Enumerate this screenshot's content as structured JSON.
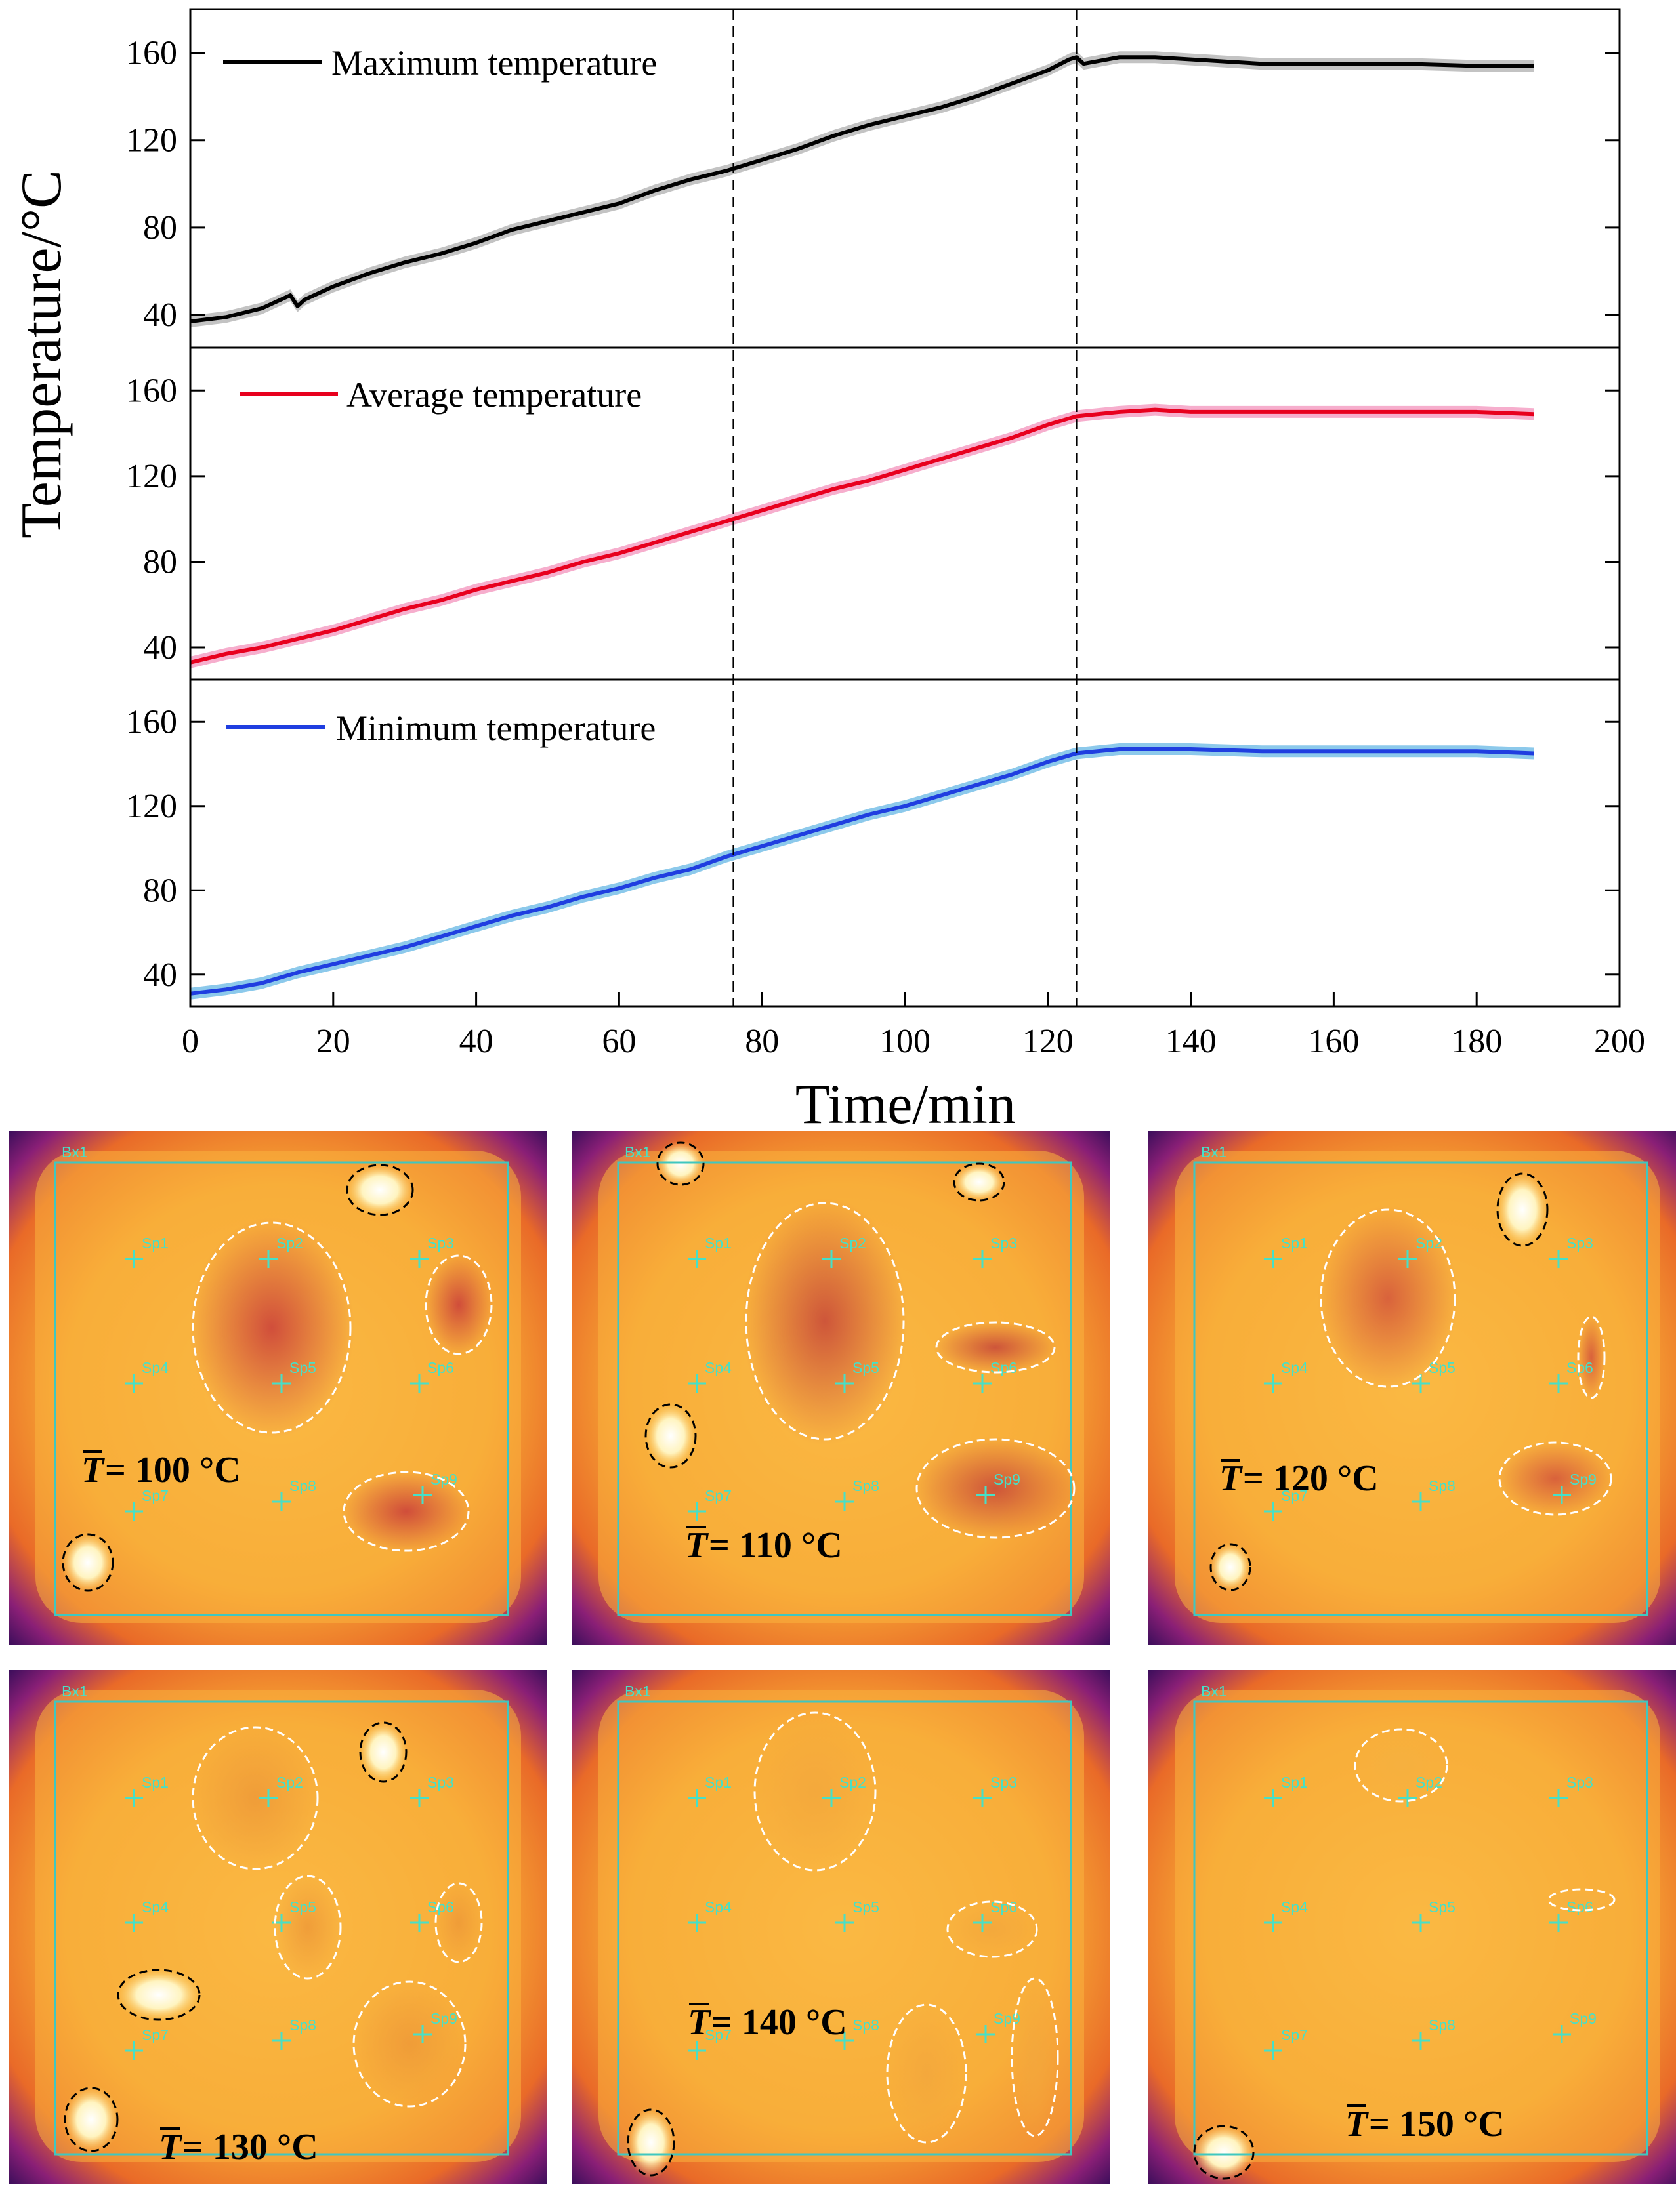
{
  "chart_data": {
    "type": "line",
    "layout": "three stacked panels sharing x axis",
    "xlabel": "Time/min",
    "ylabel": "Temperature/°C",
    "xlim": [
      0,
      200
    ],
    "xticks": [
      0,
      20,
      40,
      60,
      80,
      100,
      120,
      140,
      160,
      180,
      200
    ],
    "ylim": [
      25,
      180
    ],
    "yticks": [
      40,
      80,
      120,
      160
    ],
    "reference_lines_x": [
      76,
      124
    ],
    "panels": [
      {
        "name": "Maximum temperature",
        "color": "#000000",
        "band_color": "#b8b8b8",
        "x": [
          0,
          5,
          10,
          14,
          15,
          16,
          20,
          25,
          30,
          35,
          40,
          45,
          50,
          55,
          60,
          65,
          70,
          75,
          80,
          85,
          90,
          95,
          100,
          105,
          110,
          115,
          120,
          123,
          124,
          125,
          130,
          135,
          140,
          150,
          160,
          170,
          180,
          188
        ],
        "values": [
          37,
          39,
          43,
          49,
          44,
          47,
          53,
          59,
          64,
          68,
          73,
          79,
          83,
          87,
          91,
          97,
          102,
          106,
          111,
          116,
          122,
          127,
          131,
          135,
          140,
          146,
          152,
          157,
          158,
          155,
          158,
          158,
          157,
          155,
          155,
          155,
          154,
          154
        ]
      },
      {
        "name": "Average temperature",
        "color": "#e8001e",
        "band_color": "#f4a0c4",
        "x": [
          0,
          5,
          10,
          15,
          20,
          25,
          30,
          35,
          40,
          45,
          50,
          55,
          60,
          65,
          70,
          75,
          80,
          85,
          90,
          95,
          100,
          105,
          110,
          115,
          120,
          124,
          130,
          135,
          140,
          150,
          160,
          170,
          180,
          188
        ],
        "values": [
          33,
          37,
          40,
          44,
          48,
          53,
          58,
          62,
          67,
          71,
          75,
          80,
          84,
          89,
          94,
          99,
          104,
          109,
          114,
          118,
          123,
          128,
          133,
          138,
          144,
          148,
          150,
          151,
          150,
          150,
          150,
          150,
          150,
          149
        ]
      },
      {
        "name": "Minimum temperature",
        "color": "#1f3ee0",
        "band_color": "#78c0e8",
        "x": [
          0,
          5,
          10,
          15,
          20,
          25,
          30,
          35,
          40,
          45,
          50,
          55,
          60,
          65,
          70,
          75,
          80,
          85,
          90,
          95,
          100,
          105,
          110,
          115,
          120,
          124,
          130,
          135,
          140,
          150,
          160,
          170,
          180,
          188
        ],
        "values": [
          31,
          33,
          36,
          41,
          45,
          49,
          53,
          58,
          63,
          68,
          72,
          77,
          81,
          86,
          90,
          96,
          101,
          106,
          111,
          116,
          120,
          125,
          130,
          135,
          141,
          145,
          147,
          147,
          147,
          146,
          146,
          146,
          146,
          145
        ]
      }
    ]
  },
  "thermal_images": [
    {
      "temp_label": "= 100 °C",
      "box_label": "Bx1",
      "spots": [
        "Sp1",
        "Sp2",
        "Sp3",
        "Sp4",
        "Sp5",
        "Sp6",
        "Sp7",
        "Sp8",
        "Sp9"
      ]
    },
    {
      "temp_label": "= 110 °C",
      "box_label": "Bx1",
      "spots": [
        "Sp1",
        "Sp2",
        "Sp3",
        "Sp4",
        "Sp5",
        "Sp6",
        "Sp7",
        "Sp8",
        "Sp9"
      ]
    },
    {
      "temp_label": "= 120 °C",
      "box_label": "Bx1",
      "spots": [
        "Sp1",
        "Sp2",
        "Sp3",
        "Sp4",
        "Sp5",
        "Sp6",
        "Sp7",
        "Sp8",
        "Sp9"
      ]
    },
    {
      "temp_label": "= 130 °C",
      "box_label": "Bx1",
      "spots": [
        "Sp1",
        "Sp2",
        "Sp3",
        "Sp4",
        "Sp5",
        "Sp6",
        "Sp7",
        "Sp8",
        "Sp9"
      ]
    },
    {
      "temp_label": "= 140 °C",
      "box_label": "Bx1",
      "spots": [
        "Sp1",
        "Sp2",
        "Sp3",
        "Sp4",
        "Sp5",
        "Sp6",
        "Sp7",
        "Sp8",
        "Sp9"
      ]
    },
    {
      "temp_label": "= 150 °C",
      "box_label": "Bx1",
      "spots": [
        "Sp1",
        "Sp2",
        "Sp3",
        "Sp4",
        "Sp5",
        "Sp6",
        "Sp7",
        "Sp8",
        "Sp9"
      ]
    }
  ],
  "temp_symbol": "T"
}
